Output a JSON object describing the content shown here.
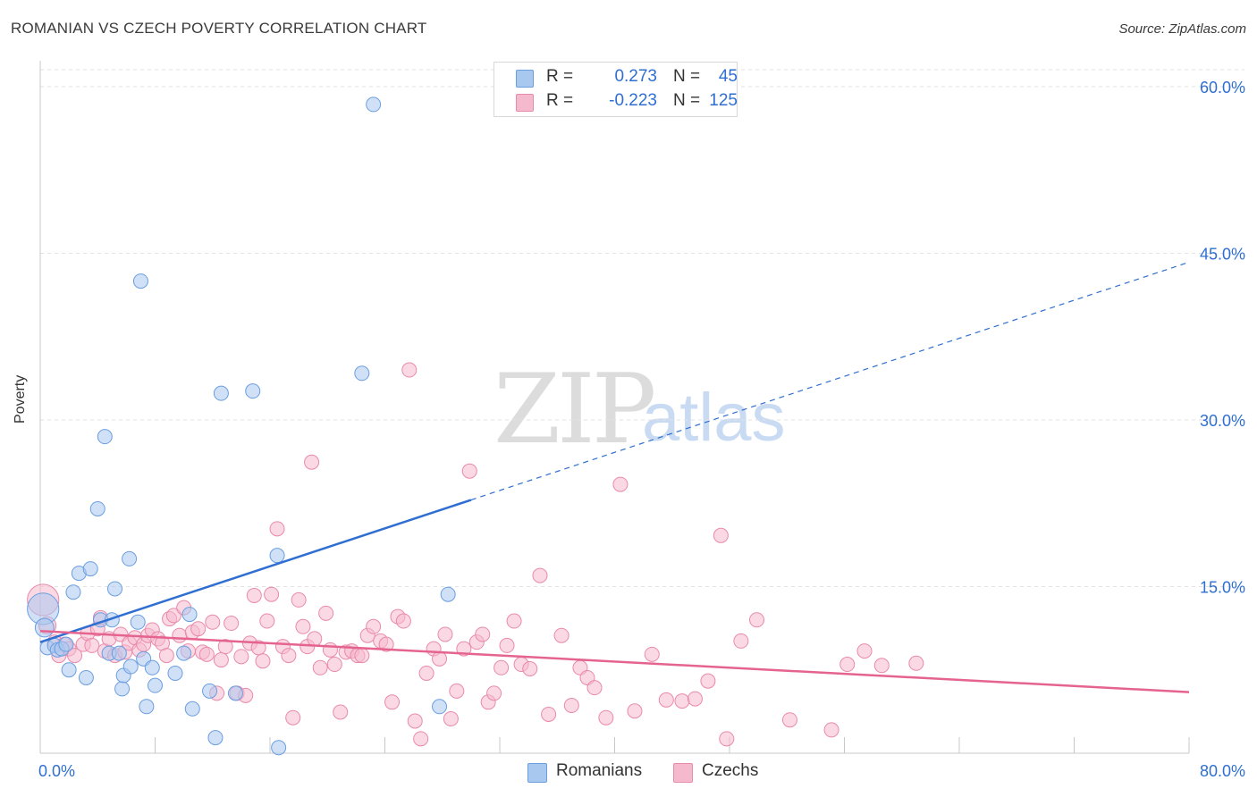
{
  "title": "ROMANIAN VS CZECH POVERTY CORRELATION CHART",
  "source": "Source: ZipAtlas.com",
  "watermark": {
    "part1": "ZIP",
    "part2": "atlas"
  },
  "legend": {
    "rows": [
      {
        "r_label": "R =",
        "r_value": "0.273",
        "n_label": "N =",
        "n_value": "45"
      },
      {
        "r_label": "R =",
        "r_value": "-0.223",
        "n_label": "N =",
        "n_value": "125"
      }
    ]
  },
  "bottom_legend": {
    "romanians": "Romanians",
    "czechs": "Czechs"
  },
  "colors": {
    "romanians_fill": "#a9c8f0",
    "romanians_stroke": "#6a9ee0",
    "romanians_line": "#2f6fd1",
    "czechs_fill": "#f5b9cd",
    "czechs_stroke": "#e98aab",
    "czechs_line": "#e5648f",
    "grid": "#e2e2e2",
    "tick_label": "#2f6fd1"
  },
  "chart_data": {
    "type": "scatter",
    "title": "ROMANIAN VS CZECH POVERTY CORRELATION CHART",
    "xlabel": "",
    "ylabel": "Poverty",
    "xlim": [
      0,
      80
    ],
    "ylim": [
      0,
      60
    ],
    "x_tick_labels": [
      "0.0%",
      "80.0%"
    ],
    "y_ticks": [
      15,
      30,
      45,
      60
    ],
    "y_tick_labels": [
      "15.0%",
      "30.0%",
      "45.0%",
      "60.0%"
    ],
    "grid": true,
    "series": [
      {
        "name": "Romanians",
        "R": 0.273,
        "N": 45,
        "trend": {
          "x0": 0,
          "y0": 10.0,
          "x1": 30,
          "y1": 22.8,
          "dash_to_x": 80,
          "dash_to_y": 44.2
        },
        "points": [
          [
            0.2,
            13.0,
            2.2
          ],
          [
            0.3,
            11.3,
            1.3
          ],
          [
            0.5,
            9.5,
            1
          ],
          [
            1.0,
            9.7,
            1
          ],
          [
            1.2,
            9.3,
            1
          ],
          [
            1.5,
            9.4,
            1
          ],
          [
            1.8,
            9.8,
            1
          ],
          [
            2.0,
            7.5,
            1
          ],
          [
            2.3,
            14.5,
            1
          ],
          [
            2.7,
            16.2,
            1
          ],
          [
            3.2,
            6.8,
            1
          ],
          [
            3.5,
            16.6,
            1
          ],
          [
            4.0,
            22.0,
            1
          ],
          [
            4.2,
            12.0,
            1
          ],
          [
            4.5,
            28.5,
            1
          ],
          [
            4.8,
            9.0,
            1
          ],
          [
            5.0,
            12.0,
            1
          ],
          [
            5.2,
            14.8,
            1
          ],
          [
            5.5,
            9.0,
            1
          ],
          [
            5.7,
            5.8,
            1
          ],
          [
            5.8,
            7.0,
            1
          ],
          [
            6.2,
            17.5,
            1
          ],
          [
            6.3,
            7.8,
            1
          ],
          [
            6.8,
            11.8,
            1
          ],
          [
            7.0,
            42.5,
            1
          ],
          [
            7.2,
            8.5,
            1
          ],
          [
            7.4,
            4.2,
            1
          ],
          [
            7.8,
            7.7,
            1
          ],
          [
            8.0,
            6.1,
            1
          ],
          [
            9.4,
            7.2,
            1
          ],
          [
            10.0,
            9.0,
            1
          ],
          [
            10.4,
            12.5,
            1
          ],
          [
            10.6,
            4.0,
            1
          ],
          [
            11.8,
            5.6,
            1
          ],
          [
            12.2,
            1.4,
            1
          ],
          [
            12.6,
            32.4,
            1
          ],
          [
            13.6,
            5.4,
            1
          ],
          [
            14.8,
            32.6,
            1
          ],
          [
            16.5,
            17.8,
            1
          ],
          [
            16.6,
            0.5,
            1
          ],
          [
            22.4,
            34.2,
            1
          ],
          [
            23.2,
            58.4,
            1
          ],
          [
            27.8,
            4.2,
            1
          ],
          [
            28.4,
            14.3,
            1
          ]
        ]
      },
      {
        "name": "Czechs",
        "R": -0.223,
        "N": 125,
        "trend": {
          "x0": 0,
          "y0": 11.0,
          "x1": 80,
          "y1": 5.5
        },
        "points": [
          [
            0.2,
            13.8,
            2.2
          ],
          [
            0.5,
            11.5,
            1.2
          ],
          [
            1.0,
            10.0,
            1
          ],
          [
            1.3,
            8.8,
            1
          ],
          [
            1.7,
            9.8,
            1
          ],
          [
            2.0,
            9.4,
            1
          ],
          [
            2.4,
            8.8,
            1
          ],
          [
            3.0,
            9.8,
            1
          ],
          [
            3.3,
            10.8,
            1
          ],
          [
            3.6,
            9.7,
            1
          ],
          [
            4.0,
            11.2,
            1
          ],
          [
            4.2,
            12.2,
            1
          ],
          [
            4.5,
            9.2,
            1
          ],
          [
            4.8,
            10.3,
            1
          ],
          [
            5.2,
            8.8,
            1
          ],
          [
            5.6,
            10.7,
            1
          ],
          [
            5.9,
            9.1,
            1
          ],
          [
            6.2,
            9.9,
            1
          ],
          [
            6.6,
            10.4,
            1
          ],
          [
            6.9,
            9.3,
            1
          ],
          [
            7.2,
            9.8,
            1
          ],
          [
            7.5,
            10.6,
            1
          ],
          [
            7.8,
            11.1,
            1
          ],
          [
            8.2,
            10.3,
            1
          ],
          [
            8.5,
            9.9,
            1
          ],
          [
            8.8,
            8.8,
            1
          ],
          [
            9.0,
            12.1,
            1
          ],
          [
            9.3,
            12.4,
            1
          ],
          [
            9.7,
            10.6,
            1
          ],
          [
            10.0,
            13.1,
            1
          ],
          [
            10.3,
            9.2,
            1
          ],
          [
            10.6,
            10.9,
            1
          ],
          [
            11.0,
            11.2,
            1
          ],
          [
            11.3,
            9.1,
            1
          ],
          [
            11.6,
            8.9,
            1
          ],
          [
            12.0,
            11.8,
            1
          ],
          [
            12.3,
            5.4,
            1
          ],
          [
            12.6,
            8.4,
            1
          ],
          [
            12.9,
            9.6,
            1
          ],
          [
            13.3,
            11.7,
            1
          ],
          [
            13.7,
            5.4,
            1
          ],
          [
            14.0,
            8.7,
            1
          ],
          [
            14.3,
            5.2,
            1
          ],
          [
            14.6,
            9.9,
            1
          ],
          [
            14.9,
            14.2,
            1
          ],
          [
            15.2,
            9.5,
            1
          ],
          [
            15.5,
            8.3,
            1
          ],
          [
            15.8,
            11.9,
            1
          ],
          [
            16.1,
            14.3,
            1
          ],
          [
            16.5,
            20.2,
            1
          ],
          [
            16.9,
            9.6,
            1
          ],
          [
            17.3,
            8.8,
            1
          ],
          [
            17.6,
            3.2,
            1
          ],
          [
            18.0,
            13.8,
            1
          ],
          [
            18.3,
            11.4,
            1
          ],
          [
            18.6,
            9.6,
            1
          ],
          [
            18.9,
            26.2,
            1
          ],
          [
            19.1,
            10.3,
            1
          ],
          [
            19.5,
            7.7,
            1
          ],
          [
            19.9,
            12.6,
            1
          ],
          [
            20.2,
            9.3,
            1
          ],
          [
            20.5,
            8.0,
            1
          ],
          [
            20.9,
            3.7,
            1
          ],
          [
            21.3,
            9.1,
            1
          ],
          [
            21.7,
            9.2,
            1
          ],
          [
            22.1,
            8.8,
            1
          ],
          [
            22.4,
            8.8,
            1
          ],
          [
            22.8,
            10.6,
            1
          ],
          [
            23.2,
            11.4,
            1
          ],
          [
            23.7,
            10.1,
            1
          ],
          [
            24.1,
            9.8,
            1
          ],
          [
            24.5,
            4.6,
            1
          ],
          [
            24.9,
            12.3,
            1
          ],
          [
            25.3,
            11.9,
            1
          ],
          [
            25.7,
            34.5,
            1
          ],
          [
            26.1,
            2.9,
            1
          ],
          [
            26.5,
            1.3,
            1
          ],
          [
            26.9,
            7.2,
            1
          ],
          [
            27.4,
            9.4,
            1
          ],
          [
            27.8,
            8.5,
            1
          ],
          [
            28.2,
            10.7,
            1
          ],
          [
            28.6,
            3.1,
            1
          ],
          [
            29.0,
            5.6,
            1
          ],
          [
            29.5,
            9.4,
            1
          ],
          [
            29.9,
            25.4,
            1
          ],
          [
            30.4,
            10.0,
            1
          ],
          [
            30.8,
            10.7,
            1
          ],
          [
            31.2,
            4.6,
            1
          ],
          [
            31.6,
            5.4,
            1
          ],
          [
            32.1,
            7.7,
            1
          ],
          [
            32.5,
            9.7,
            1
          ],
          [
            33.0,
            11.9,
            1
          ],
          [
            33.5,
            8.0,
            1
          ],
          [
            34.1,
            7.6,
            1
          ],
          [
            34.8,
            16.0,
            1
          ],
          [
            35.4,
            3.5,
            1
          ],
          [
            36.3,
            10.6,
            1
          ],
          [
            37.0,
            4.3,
            1
          ],
          [
            37.6,
            7.7,
            1
          ],
          [
            38.1,
            6.8,
            1
          ],
          [
            38.6,
            5.9,
            1
          ],
          [
            39.4,
            3.2,
            1
          ],
          [
            40.4,
            24.2,
            1
          ],
          [
            41.4,
            3.8,
            1
          ],
          [
            42.6,
            8.9,
            1
          ],
          [
            43.6,
            4.8,
            1
          ],
          [
            44.7,
            4.7,
            1
          ],
          [
            45.6,
            4.9,
            1
          ],
          [
            46.5,
            6.5,
            1
          ],
          [
            47.4,
            19.6,
            1
          ],
          [
            47.8,
            1.3,
            1
          ],
          [
            48.8,
            10.1,
            1
          ],
          [
            49.9,
            12.0,
            1
          ],
          [
            52.2,
            3.0,
            1
          ],
          [
            55.1,
            2.1,
            1
          ],
          [
            56.2,
            8.0,
            1
          ],
          [
            57.4,
            9.2,
            1
          ],
          [
            58.6,
            7.9,
            1
          ],
          [
            61.0,
            8.1,
            1
          ]
        ]
      }
    ]
  }
}
